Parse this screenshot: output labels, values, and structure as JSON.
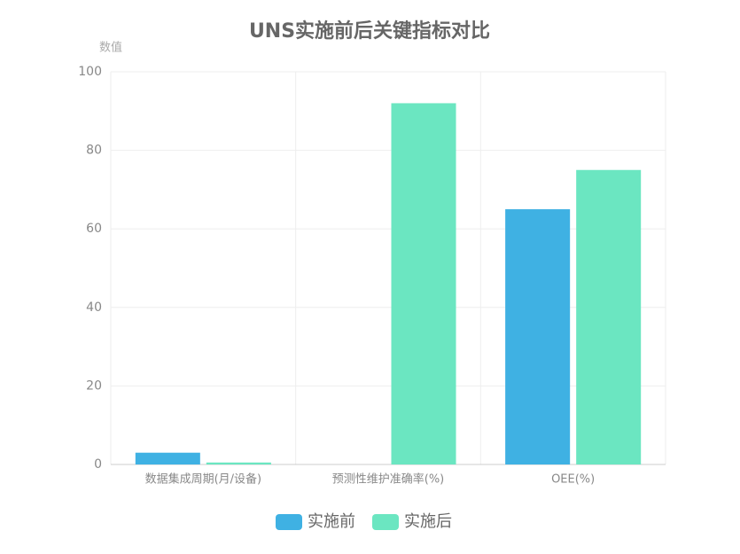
{
  "chart_data": {
    "type": "bar",
    "title": "UNS实施前后关键指标对比",
    "y_label": "数值",
    "categories": [
      "数据集成周期(月/设备)",
      "预测性维护准确率(%)",
      "OEE(%)"
    ],
    "series": [
      {
        "name": "实施前",
        "color": "#3fb1e3",
        "values": [
          3,
          0,
          65
        ]
      },
      {
        "name": "实施后",
        "color": "#6be6c1",
        "values": [
          0.5,
          92,
          75
        ]
      }
    ],
    "ylim": [
      0,
      100
    ],
    "yticks": [
      0,
      20,
      40,
      60,
      80,
      100
    ],
    "grid": true,
    "legend": "bottom"
  }
}
